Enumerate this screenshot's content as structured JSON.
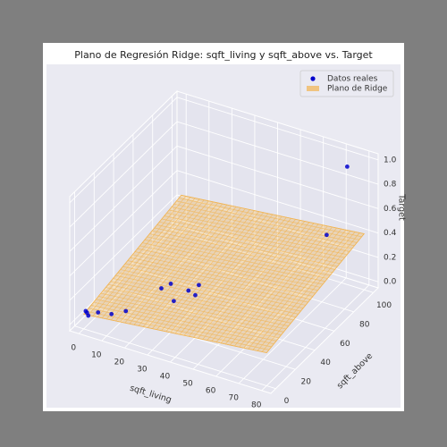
{
  "chart_data": {
    "type": "scatter3d",
    "title": "Plano de Regresión Ridge: sqft_living y sqft_above vs. Target",
    "xlabel": "sqft_living",
    "ylabel": "sqft_above",
    "zlabel": "Target",
    "xlim": [
      -4,
      84
    ],
    "ylim": [
      -5,
      105
    ],
    "zlim": [
      -0.05,
      1.05
    ],
    "xticks": [
      0,
      10,
      20,
      30,
      40,
      50,
      60,
      70,
      80
    ],
    "yticks": [
      0,
      20,
      40,
      60,
      80,
      100
    ],
    "zticks": [
      {
        "value": 0,
        "label": "0.0"
      },
      0.2,
      0.4,
      0.6,
      0.8,
      {
        "value": 1,
        "label": "1.0"
      }
    ],
    "grid": true,
    "legend": "upper right",
    "series": [
      {
        "name": "Datos reales",
        "color": "#0000cc",
        "x": [
          1,
          2,
          0,
          5,
          10,
          15,
          22,
          24,
          30,
          33,
          35,
          36,
          70,
          76
        ],
        "y": [
          1,
          0,
          2,
          3,
          5,
          8,
          28,
          33,
          22,
          30,
          36,
          30,
          85,
          92
        ],
        "z": [
          0.08,
          0.07,
          0.08,
          0.09,
          0.09,
          0.12,
          0.19,
          0.2,
          0.18,
          0.22,
          0.23,
          0.2,
          0.46,
          1
        ]
      }
    ],
    "surface": {
      "name": "Plano de Ridge",
      "color": "#f2b450",
      "x": [
        0,
        80
      ],
      "y": [
        0,
        100
      ],
      "z": [
        [
          0.07,
          0.22
        ],
        [
          0.26,
          0.41
        ]
      ]
    }
  }
}
